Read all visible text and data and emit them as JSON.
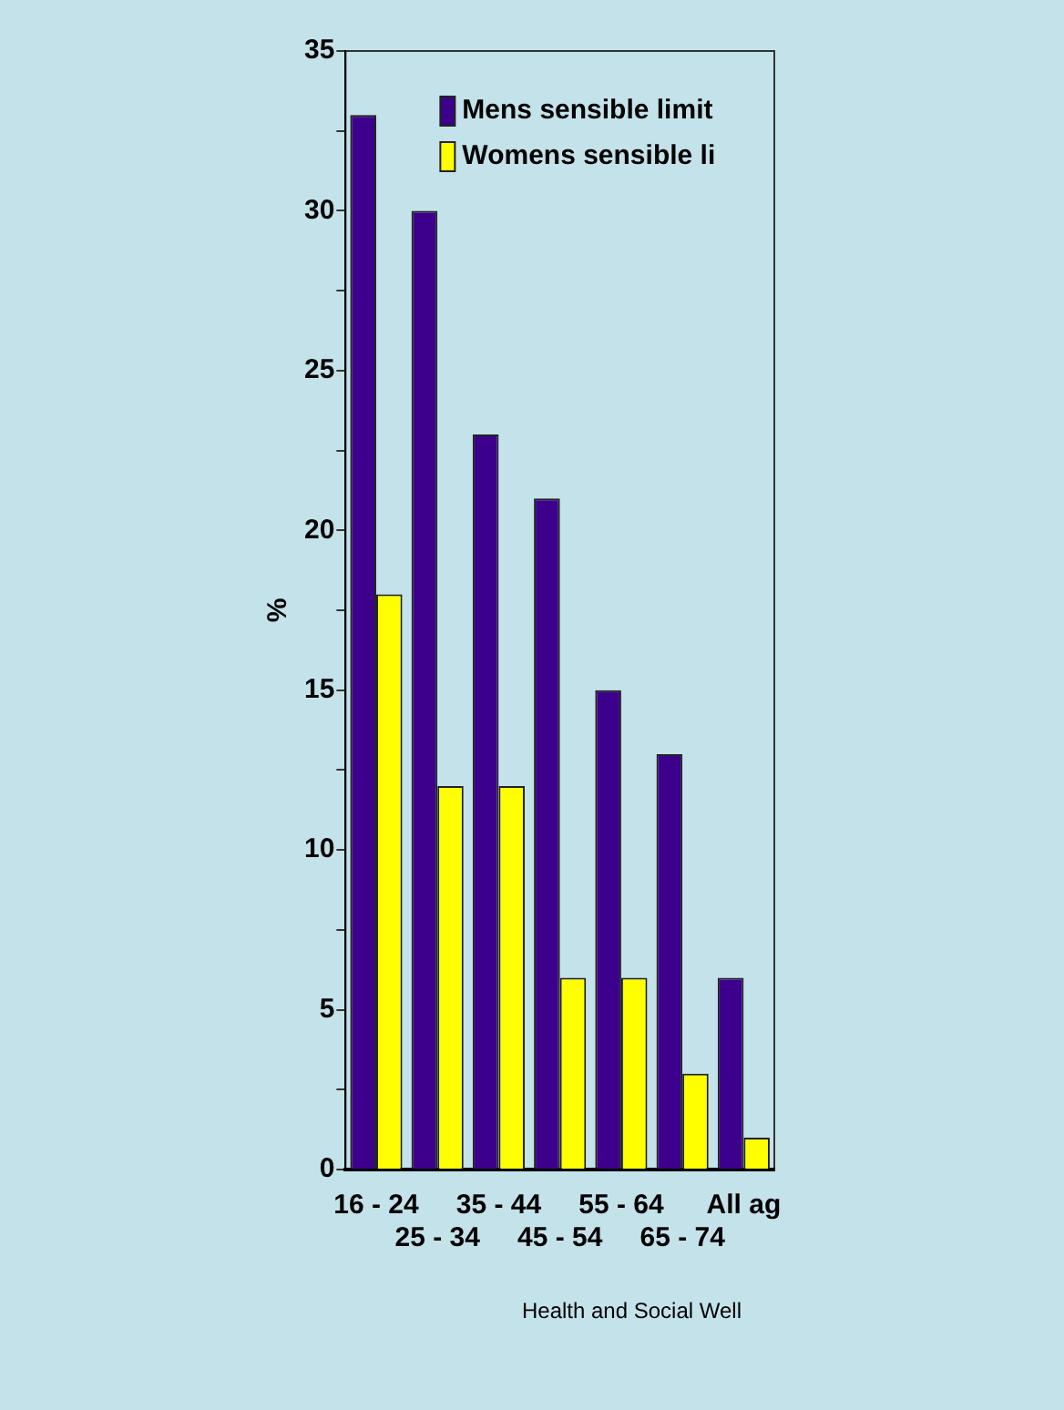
{
  "chart_data": {
    "type": "bar",
    "ylabel": "%",
    "categories": [
      "16 - 24",
      "25 - 34",
      "35 - 44",
      "45 - 54",
      "55 - 64",
      "65 - 74",
      "All ag"
    ],
    "series": [
      {
        "name": "Mens sensible limit",
        "color": "#3d008c",
        "values": [
          33,
          30,
          23,
          21,
          15,
          13,
          6
        ]
      },
      {
        "name": "Womens sensible li",
        "color": "#ffff00",
        "values": [
          18,
          12,
          12,
          6,
          6,
          3,
          1
        ]
      }
    ],
    "ylim": [
      0,
      35
    ],
    "yticks": [
      0,
      {
        "value": 2.5,
        "label": null
      },
      5,
      {
        "value": 7.5,
        "label": null
      },
      10,
      {
        "value": 12.5,
        "label": null
      },
      15,
      {
        "value": 17.5,
        "label": null
      },
      20,
      {
        "value": 22.5,
        "label": null
      },
      25,
      {
        "value": 27.5,
        "label": null
      },
      30,
      {
        "value": 32.5,
        "label": null
      },
      35
    ],
    "grid": false,
    "legend": "top right",
    "annotations": [
      "Health and Social Well"
    ]
  }
}
